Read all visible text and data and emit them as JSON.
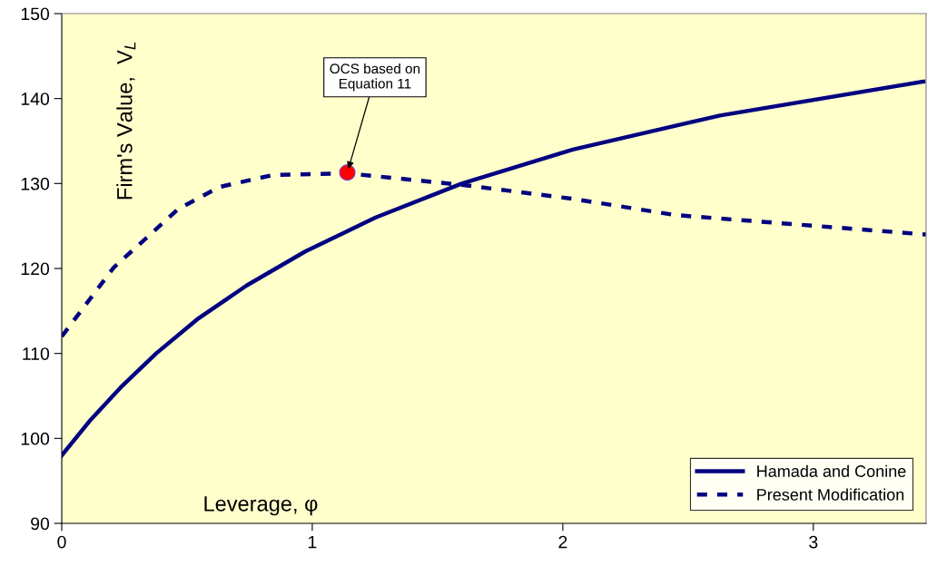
{
  "chart_data": {
    "type": "line",
    "xlabel": "Leverage, φ",
    "ylabel": "Firm's Value,  V$_{L}$",
    "series": [
      {
        "name": "Hamada and Conine",
        "color": "#000080",
        "line_style": "solid",
        "x": [
          0,
          0.11,
          0.235,
          0.377,
          0.54,
          0.738,
          0.972,
          1.253,
          1.597,
          2.04,
          2.627,
          3.44
        ],
        "values": [
          98,
          102,
          106,
          110,
          114,
          118,
          122,
          126,
          130,
          134,
          138,
          142
        ]
      },
      {
        "name": "Present Modification",
        "color": "#000080",
        "line_style": "dashed",
        "x": [
          0,
          0.207,
          0.465,
          0.63,
          0.843,
          1.14,
          1.61,
          2.04,
          2.446,
          3.45
        ],
        "values": [
          112,
          120.1,
          127,
          129.6,
          131,
          131.2,
          129.8,
          128.2,
          126.3,
          124
        ]
      },
      {
        "type": "scatter",
        "color": "#ff0000",
        "marker": "circle",
        "x": [
          1.14
        ],
        "values": [
          131.3
        ]
      }
    ],
    "annotations": [
      {
        "text": "OCS based on\nEquation 11",
        "x": 1.14,
        "y": 131.3
      }
    ],
    "xlim": [
      0,
      3.45
    ],
    "xticks": [
      0,
      1,
      2,
      3
    ],
    "ylim": [
      90,
      150
    ],
    "yticks": [
      90,
      100,
      110,
      120,
      130,
      140,
      150
    ],
    "grid": false,
    "legend": "bottom right"
  }
}
